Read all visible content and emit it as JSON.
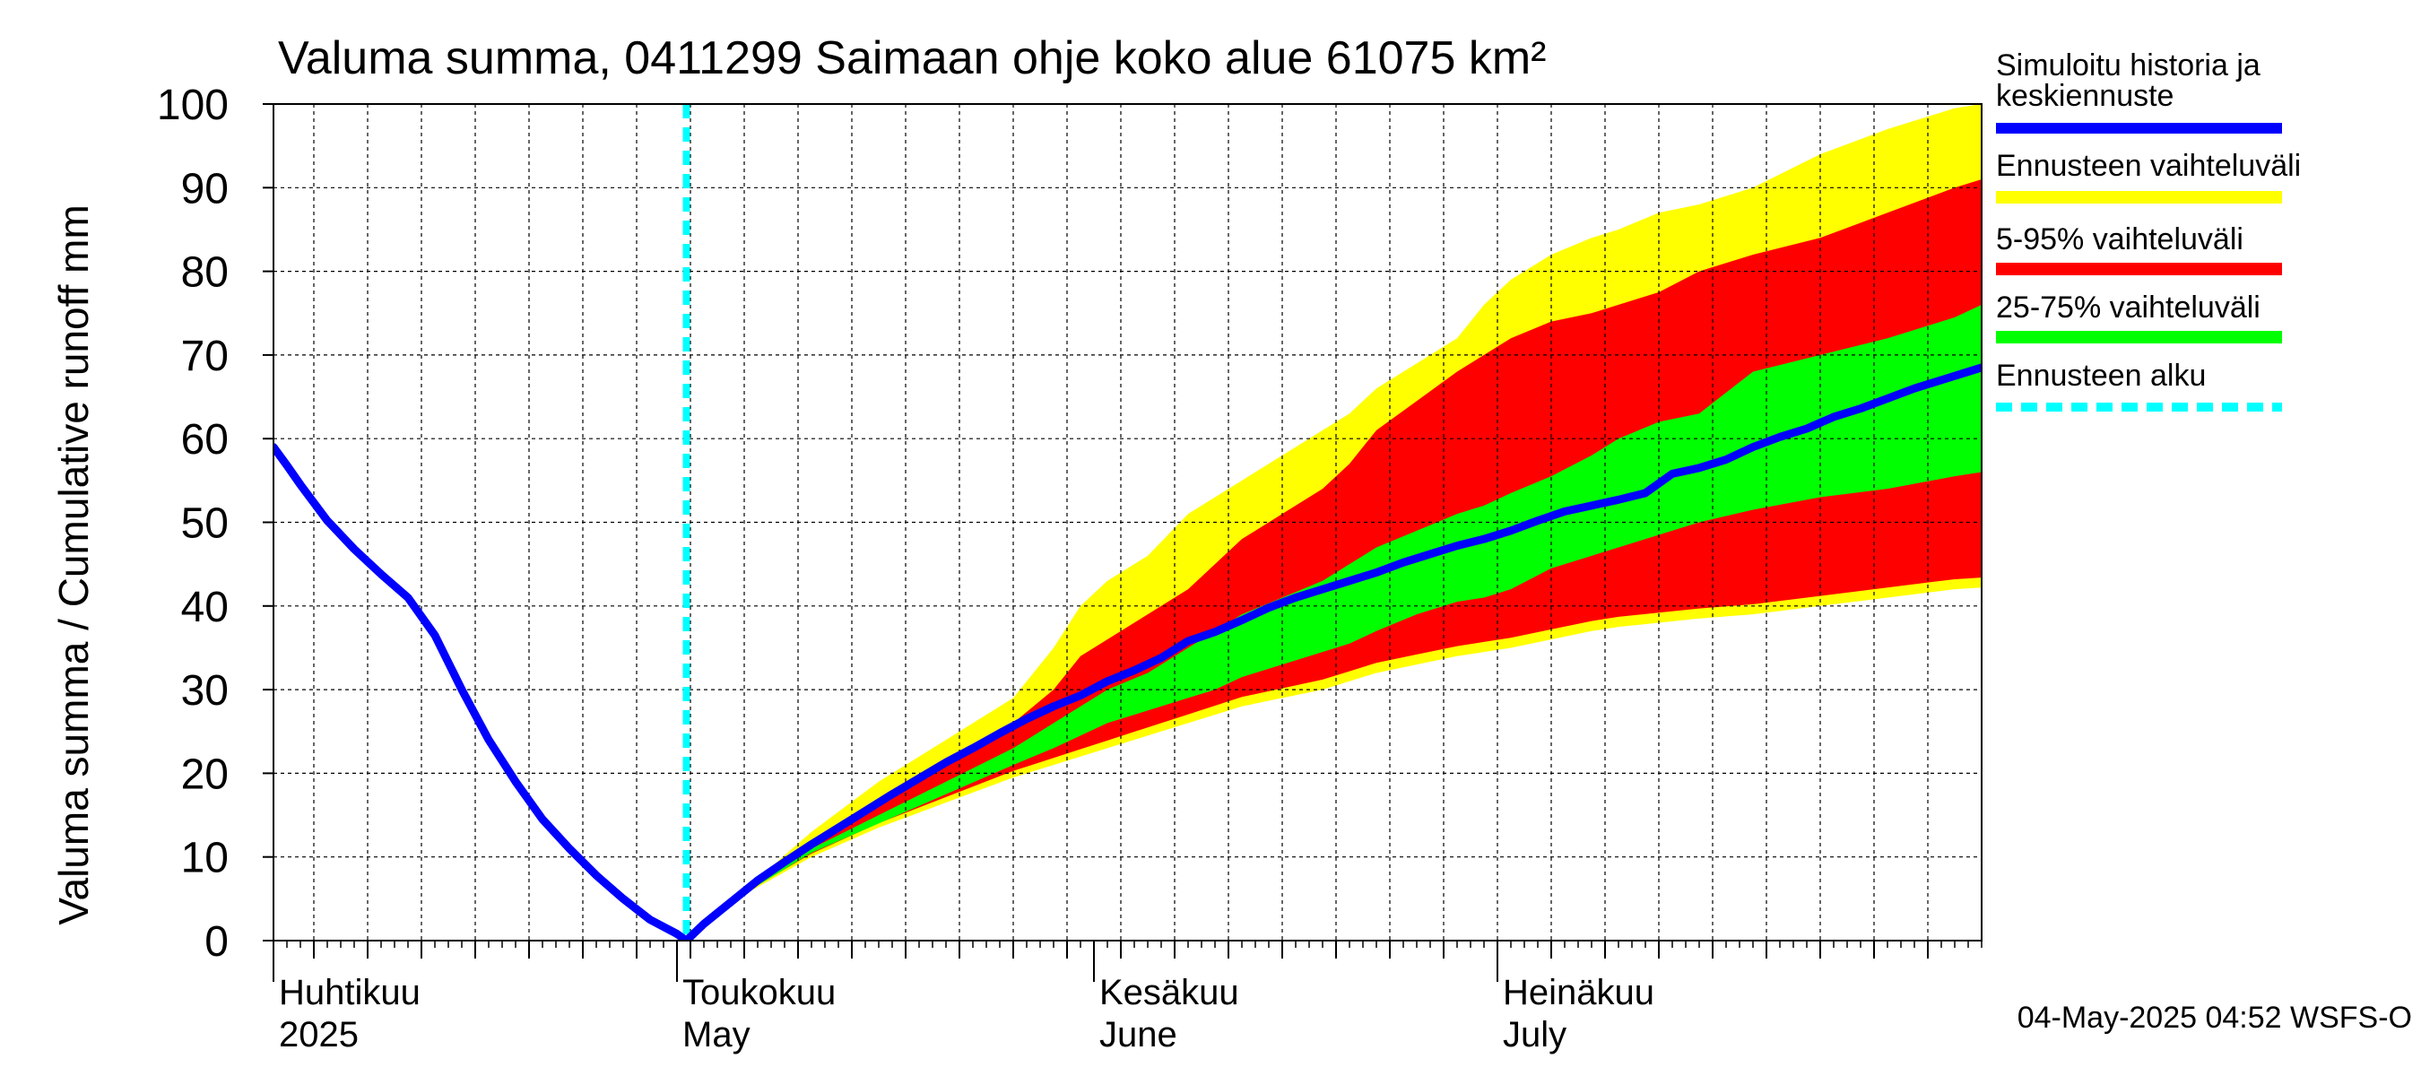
{
  "chart_data": {
    "type": "area",
    "title": "Valuma summa, 0411299 Saimaan ohje koko alue 61075 km²",
    "ylabel": "Valuma summa / Cumulative runoff    mm",
    "ylim": [
      0,
      100
    ],
    "yticks": [
      0,
      10,
      20,
      30,
      40,
      50,
      60,
      70,
      80,
      90,
      100
    ],
    "xlim": [
      0,
      127
    ],
    "x_unit": "days since 1 April 2025",
    "month_labels": [
      {
        "day": 0,
        "fi": "Huhtikuu",
        "en": "2025"
      },
      {
        "day": 30,
        "fi": "Toukokuu",
        "en": "May"
      },
      {
        "day": 61,
        "fi": "Kesäkuu",
        "en": "June"
      },
      {
        "day": 91,
        "fi": "Heinäkuu",
        "en": "July"
      }
    ],
    "forecast_start_day": 30.7,
    "colors": {
      "history": "#0000ff",
      "range": "#ffff00",
      "p5_95": "#ff0000",
      "p25_75": "#00ff00",
      "forecast_start": "#00ffff",
      "grid": "#000000"
    },
    "series": [
      {
        "name": "Simuloitu historia ja keskiennuste",
        "x": [
          0,
          1,
          2,
          4,
          6,
          8,
          10,
          12,
          14,
          16,
          18,
          20,
          22,
          24,
          26,
          28,
          30,
          30.7,
          32,
          34,
          36,
          38,
          40,
          42,
          44,
          46,
          48,
          50,
          52,
          54,
          56,
          58,
          60,
          62,
          64,
          66,
          68,
          70,
          72,
          74,
          76,
          78,
          80,
          82,
          84,
          86,
          88,
          90,
          92,
          94,
          96,
          98,
          100,
          102,
          104,
          106,
          108,
          110,
          112,
          114,
          116,
          118,
          120,
          122,
          124,
          126,
          127
        ],
        "y": [
          59,
          56.8,
          54.5,
          50.2,
          46.8,
          43.8,
          41,
          36.5,
          30,
          24,
          19,
          14.5,
          11,
          7.8,
          5,
          2.5,
          0.8,
          0,
          2,
          4.6,
          7.2,
          9.4,
          11.5,
          13.5,
          15.5,
          17.5,
          19.4,
          21.3,
          23,
          24.8,
          26.5,
          28,
          29.3,
          31,
          32.3,
          33.8,
          35.8,
          36.9,
          38.3,
          39.8,
          41,
          42,
          43,
          44,
          45.2,
          46.2,
          47.2,
          48,
          49,
          50.2,
          51.3,
          52,
          52.7,
          53.5,
          55.8,
          56.5,
          57.5,
          59,
          60.2,
          61.2,
          62.6,
          63.6,
          64.8,
          66,
          67,
          68,
          68.5
        ]
      },
      {
        "name": "Ennusteen vaihteluväli",
        "x": [
          30.7,
          35,
          40,
          45,
          50,
          55,
          58,
          60,
          62,
          65,
          68,
          70,
          72,
          75,
          78,
          80,
          82,
          85,
          88,
          90,
          92,
          95,
          98,
          100,
          103,
          106,
          110,
          115,
          120,
          125,
          127
        ],
        "upper": [
          0,
          6,
          13,
          19,
          24,
          29,
          35,
          40,
          43,
          46,
          51,
          53,
          55,
          58,
          61,
          63,
          66,
          69,
          72,
          76,
          79,
          82,
          84,
          85,
          87,
          88,
          90,
          94,
          97,
          99.5,
          100
        ],
        "lower": [
          0,
          5.5,
          10,
          13.5,
          16.5,
          19.5,
          21,
          22,
          23,
          24.5,
          26,
          27,
          28,
          29,
          30,
          31,
          32,
          33,
          34,
          34.5,
          35,
          36,
          37,
          37.5,
          38,
          38.5,
          39,
          40,
          41,
          42,
          42.2
        ]
      },
      {
        "name": "5-95% vaihteluväli",
        "x": [
          30.7,
          35,
          40,
          45,
          50,
          55,
          58,
          60,
          62,
          65,
          68,
          70,
          72,
          75,
          78,
          80,
          82,
          85,
          88,
          90,
          92,
          95,
          98,
          100,
          103,
          106,
          110,
          115,
          120,
          125,
          127
        ],
        "upper": [
          0,
          6,
          12,
          17,
          21.5,
          26,
          30,
          34,
          36,
          39,
          42,
          45,
          48,
          51,
          54,
          57,
          61,
          64.5,
          68,
          70,
          72,
          74,
          75,
          76,
          77.5,
          80,
          82,
          84,
          87,
          90,
          91
        ]
      },
      {
        "name": "25-75% vaihteluväli",
        "x": [
          30.7,
          35,
          40,
          45,
          50,
          55,
          58,
          60,
          62,
          65,
          68,
          70,
          72,
          75,
          78,
          80,
          82,
          85,
          88,
          90,
          92,
          95,
          98,
          100,
          103,
          106,
          110,
          115,
          120,
          125,
          127
        ],
        "upper": [
          0,
          5.8,
          11,
          15,
          19,
          23,
          26,
          28,
          30,
          32,
          35,
          37,
          39,
          41,
          43,
          45,
          47,
          49,
          51,
          52,
          53.5,
          55.5,
          58,
          60,
          62,
          63,
          68,
          70,
          72,
          74.5,
          76
        ],
        "lower": [
          0,
          5.6,
          10.5,
          14,
          17.5,
          21,
          23,
          24.5,
          26,
          27.5,
          29,
          30,
          31.5,
          33,
          34.5,
          35.5,
          37,
          39,
          40.5,
          41,
          42,
          44.5,
          46,
          47,
          48.5,
          50,
          51.5,
          53,
          54,
          55.5,
          56
        ]
      },
      {
        "name": "Ennusteen alku",
        "x": [
          30.7,
          30.7
        ],
        "y": [
          0,
          100
        ]
      }
    ]
  },
  "footer": {
    "timestamp": "04-May-2025 04:52 WSFS-O"
  }
}
